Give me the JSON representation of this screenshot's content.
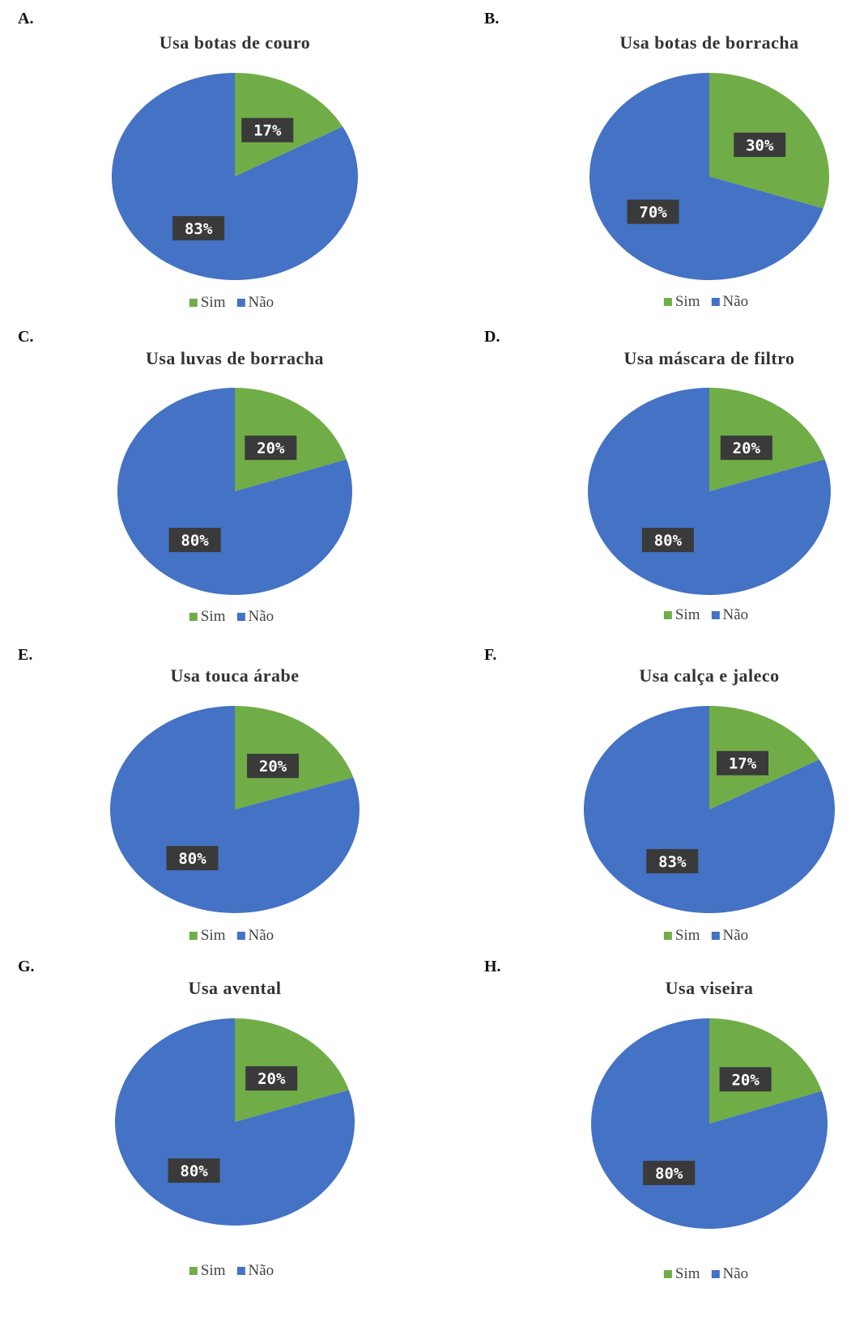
{
  "colors": {
    "sim": "#70AD47",
    "nao": "#4472C4"
  },
  "chart_data": [
    {
      "type": "pie",
      "panel": "A.",
      "title": "Usa botas de couro",
      "categories": [
        "Sim",
        "Não"
      ],
      "values": [
        17,
        83
      ],
      "labels": [
        "17%",
        "83%"
      ]
    },
    {
      "type": "pie",
      "panel": "B.",
      "title": "Usa botas de borracha",
      "categories": [
        "Sim",
        "Não"
      ],
      "values": [
        30,
        70
      ],
      "labels": [
        "30%",
        "70%"
      ]
    },
    {
      "type": "pie",
      "panel": "C.",
      "title": "Usa luvas de borracha",
      "categories": [
        "Sim",
        "Não"
      ],
      "values": [
        20,
        80
      ],
      "labels": [
        "20%",
        "80%"
      ]
    },
    {
      "type": "pie",
      "panel": "D.",
      "title": "Usa máscara de filtro",
      "categories": [
        "Sim",
        "Não"
      ],
      "values": [
        20,
        80
      ],
      "labels": [
        "20%",
        "80%"
      ]
    },
    {
      "type": "pie",
      "panel": "E.",
      "title": "Usa touca árabe",
      "categories": [
        "Sim",
        "Não"
      ],
      "values": [
        20,
        80
      ],
      "labels": [
        "20%",
        "80%"
      ]
    },
    {
      "type": "pie",
      "panel": "F.",
      "title": "Usa calça e jaleco",
      "categories": [
        "Sim",
        "Não"
      ],
      "values": [
        17,
        83
      ],
      "labels": [
        "17%",
        "83%"
      ]
    },
    {
      "type": "pie",
      "panel": "G.",
      "title": "Usa avental",
      "categories": [
        "Sim",
        "Não"
      ],
      "values": [
        20,
        80
      ],
      "labels": [
        "20%",
        "80%"
      ]
    },
    {
      "type": "pie",
      "panel": "H.",
      "title": "Usa viseira",
      "categories": [
        "Sim",
        "Não"
      ],
      "values": [
        20,
        80
      ],
      "labels": [
        "20%",
        "80%"
      ]
    }
  ]
}
